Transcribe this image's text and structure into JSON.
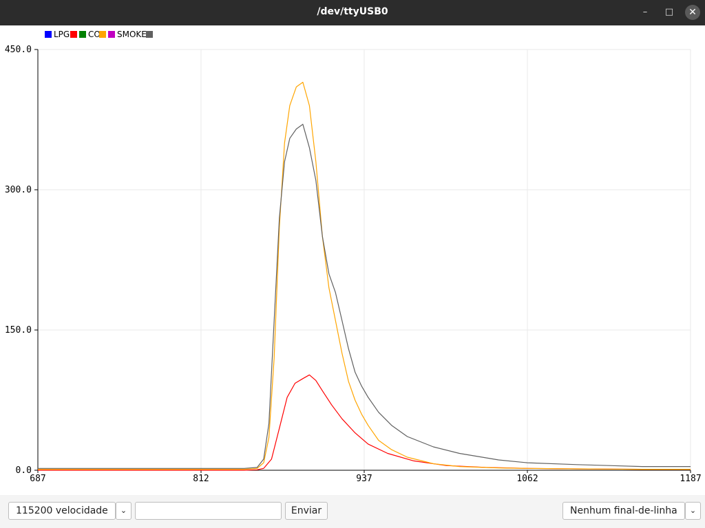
{
  "window": {
    "title": "/dev/ttyUSB0",
    "minimize_icon": "minimize-icon",
    "maximize_icon": "maximize-icon",
    "close_icon": "close-icon"
  },
  "chart_data": {
    "type": "line",
    "title": "",
    "xlabel": "",
    "ylabel": "",
    "xlim": [
      687,
      1187
    ],
    "ylim": [
      0,
      450
    ],
    "xticks": [
      "687",
      "812",
      "937",
      "1062",
      "1187"
    ],
    "yticks": [
      "0.0",
      "150.0",
      "300.0",
      "450.0"
    ],
    "grid": true,
    "legend_position": "top-left",
    "legend": [
      {
        "name": "LPG",
        "color": "#0000ff"
      },
      {
        "name": "",
        "color": "#ff0000"
      },
      {
        "name": "CO",
        "color": "#008000"
      },
      {
        "name": "",
        "color": "#ffa500"
      },
      {
        "name": "SMOKE",
        "color": "#c000c0"
      },
      {
        "name": "",
        "color": "#606060"
      }
    ],
    "series": [
      {
        "color": "#ff0000",
        "x": [
          687,
          760,
          845,
          855,
          860,
          866,
          872,
          878,
          884,
          890,
          895,
          900,
          905,
          912,
          920,
          930,
          940,
          955,
          975,
          1000,
          1030,
          1062,
          1100,
          1150,
          1187
        ],
        "y": [
          0,
          0,
          0,
          0.5,
          2,
          12,
          45,
          78,
          93,
          98,
          102,
          96,
          85,
          70,
          55,
          40,
          28,
          18,
          10,
          5,
          3,
          2,
          1.5,
          1,
          1
        ]
      },
      {
        "color": "#ffa500",
        "x": [
          687,
          760,
          845,
          855,
          860,
          864,
          868,
          872,
          876,
          880,
          885,
          890,
          895,
          900,
          905,
          910,
          915,
          920,
          925,
          930,
          935,
          940,
          948,
          958,
          970,
          990,
          1010,
          1040,
          1062,
          1100,
          1150,
          1187
        ],
        "y": [
          1,
          1,
          1,
          2,
          8,
          35,
          120,
          260,
          350,
          390,
          410,
          415,
          390,
          330,
          250,
          195,
          160,
          125,
          95,
          75,
          60,
          48,
          32,
          22,
          14,
          7,
          4,
          2.5,
          2,
          1.5,
          1,
          1
        ]
      },
      {
        "color": "#606060",
        "x": [
          687,
          760,
          845,
          855,
          860,
          864,
          868,
          872,
          876,
          880,
          885,
          890,
          895,
          900,
          905,
          910,
          915,
          920,
          925,
          930,
          935,
          940,
          948,
          958,
          970,
          990,
          1010,
          1040,
          1062,
          1100,
          1150,
          1187
        ],
        "y": [
          2,
          2,
          2,
          3,
          12,
          50,
          160,
          270,
          330,
          355,
          365,
          370,
          345,
          310,
          250,
          210,
          190,
          160,
          130,
          105,
          90,
          78,
          62,
          48,
          36,
          25,
          18,
          11,
          8,
          6,
          4,
          4
        ]
      }
    ]
  },
  "bottom": {
    "baud_value": "115200 velocidade",
    "dropdown_icon": "chevron-down-icon",
    "send_input_value": "",
    "send_label": "Enviar",
    "line_ending_value": "Nenhum final-de-linha"
  }
}
